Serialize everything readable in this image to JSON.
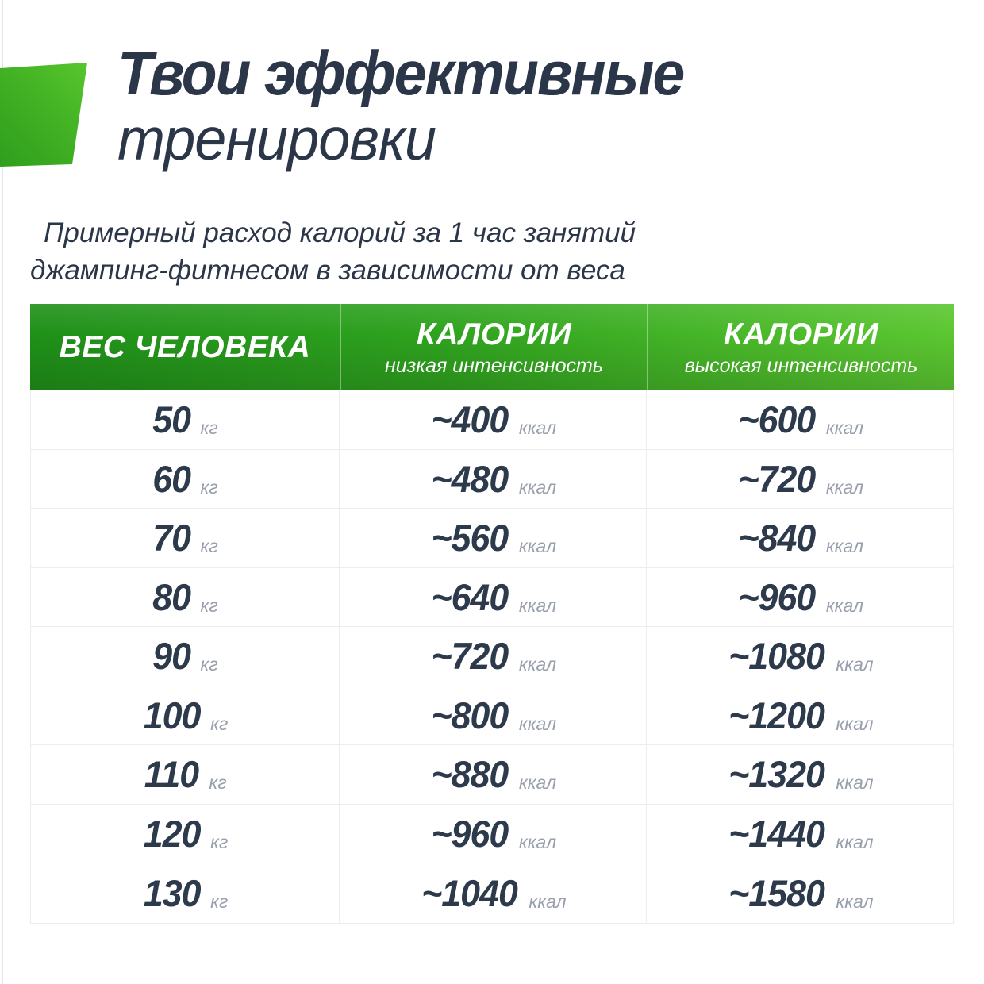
{
  "page": {
    "background": "#ffffff",
    "accent_green_light": "#5cc731",
    "accent_green_dark": "#1f9019",
    "text_dark": "#2b3648",
    "text_muted": "#98a0ad"
  },
  "header": {
    "title_line1": "Твои эффективные",
    "title_line2": "тренировки"
  },
  "subtitle": {
    "line1": "Примерный расход калорий за 1 час занятий",
    "line2": "джампинг-фитнесом в зависимости от веса"
  },
  "table": {
    "columns": [
      {
        "title": "ВЕС ЧЕЛОВЕКА",
        "subtitle": "",
        "unit": "кг"
      },
      {
        "title": "КАЛОРИИ",
        "subtitle": "низкая интенсивность",
        "unit": "ккал"
      },
      {
        "title": "КАЛОРИИ",
        "subtitle": "высокая интенсивность",
        "unit": "ккал"
      }
    ],
    "rows": [
      {
        "weight": "50",
        "low": "~400",
        "high": "~600"
      },
      {
        "weight": "60",
        "low": "~480",
        "high": "~720"
      },
      {
        "weight": "70",
        "low": "~560",
        "high": "~840"
      },
      {
        "weight": "80",
        "low": "~640",
        "high": "~960"
      },
      {
        "weight": "90",
        "low": "~720",
        "high": "~1080"
      },
      {
        "weight": "100",
        "low": "~800",
        "high": "~1200"
      },
      {
        "weight": "110",
        "low": "~880",
        "high": "~1320"
      },
      {
        "weight": "120",
        "low": "~960",
        "high": "~1440"
      },
      {
        "weight": "130",
        "low": "~1040",
        "high": "~1580"
      }
    ]
  },
  "chart_data": {
    "type": "table",
    "title": "Примерный расход калорий за 1 час занятий джампинг-фитнесом в зависимости от веса",
    "categories": [
      50,
      60,
      70,
      80,
      90,
      100,
      110,
      120,
      130
    ],
    "categories_unit": "кг",
    "series": [
      {
        "name": "КАЛОРИИ низкая интенсивность (ккал)",
        "values": [
          400,
          480,
          560,
          640,
          720,
          800,
          880,
          960,
          1040
        ]
      },
      {
        "name": "КАЛОРИИ высокая интенсивность (ккал)",
        "values": [
          600,
          720,
          840,
          960,
          1080,
          1200,
          1320,
          1440,
          1580
        ]
      }
    ]
  }
}
